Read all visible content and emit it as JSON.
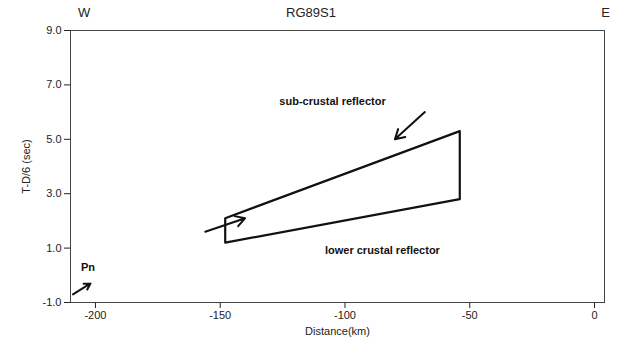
{
  "chart_data": {
    "type": "seismic_section",
    "title": "RG89S1",
    "left_end_label": "W",
    "right_end_label": "E",
    "x_label": "Distance(km)",
    "y_label": "T-D/6 (sec)",
    "xlim": [
      -210,
      4
    ],
    "ylim": [
      -1,
      9
    ],
    "xticks": [
      -200,
      -150,
      -100,
      -50,
      0
    ],
    "yticks": [
      {
        "value": 9,
        "label": "9.0"
      },
      {
        "value": 7,
        "label": "7.0"
      },
      {
        "value": 5,
        "label": "5.0"
      },
      {
        "value": 3,
        "label": "3.0"
      },
      {
        "value": 1,
        "label": "1.0"
      },
      {
        "value": -1,
        "label": "-1.0"
      }
    ],
    "reflector_outline": {
      "x": [
        -148,
        -54,
        -54,
        -148,
        -148
      ],
      "y": [
        1.2,
        2.8,
        5.3,
        2.1,
        1.2
      ]
    },
    "annotations": [
      {
        "text": "sub-crustal reflector",
        "x": -105,
        "y": 6.4
      },
      {
        "text": "lower crustal reflector",
        "x": -85,
        "y": 0.9
      },
      {
        "text": "Pn",
        "x": -203,
        "y": 0.3
      }
    ],
    "arrows": [
      {
        "x1": -68,
        "y1": 6.0,
        "x2": -80,
        "y2": 5.0
      },
      {
        "x1": -156,
        "y1": 1.6,
        "x2": -140,
        "y2": 2.1
      },
      {
        "x1": -209,
        "y1": -0.7,
        "x2": -202,
        "y2": -0.3
      }
    ]
  }
}
